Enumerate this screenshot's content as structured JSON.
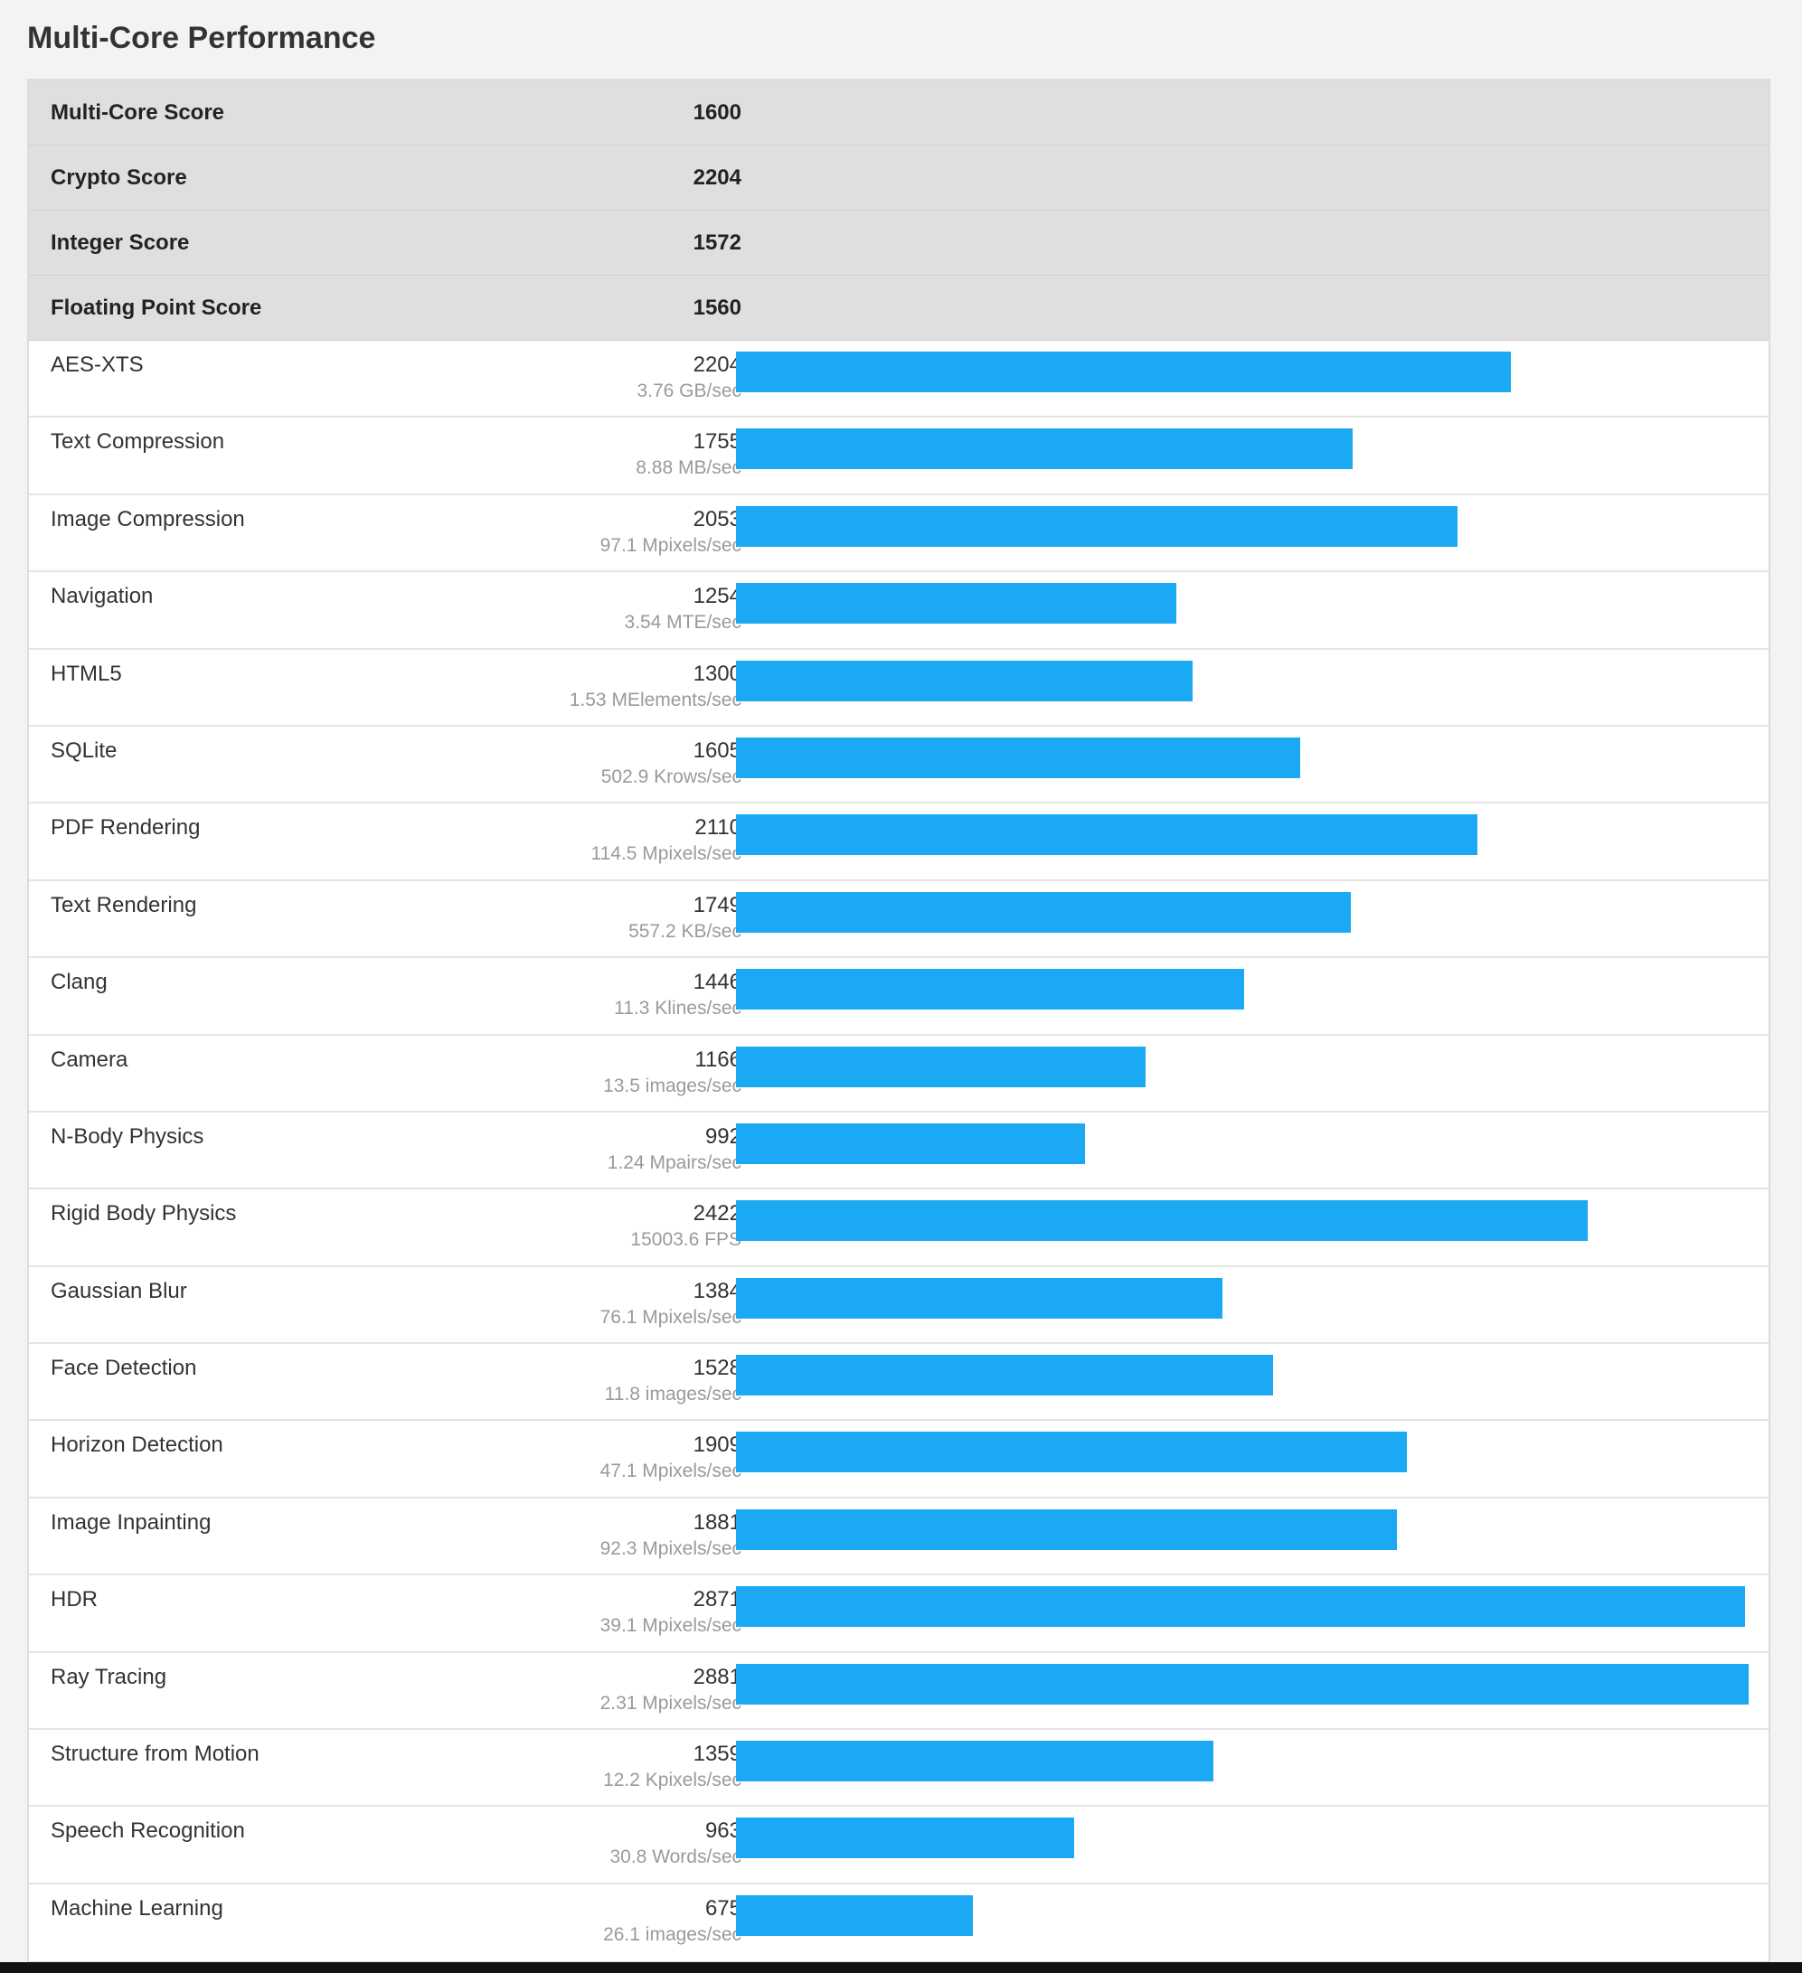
{
  "page": {
    "title": "Multi-Core Performance"
  },
  "colors": {
    "bar": "#1aa9f2",
    "summary_background": "#dfdfdf",
    "page_background": "#f3f3f3"
  },
  "summary": [
    {
      "label": "Multi-Core Score",
      "score": "1600"
    },
    {
      "label": "Crypto Score",
      "score": "2204"
    },
    {
      "label": "Integer Score",
      "score": "1572"
    },
    {
      "label": "Floating Point Score",
      "score": "1560"
    }
  ],
  "chart_data": {
    "type": "bar",
    "orientation": "horizontal",
    "title": "Multi-Core Performance",
    "xlim": [
      0,
      2881
    ],
    "categories": [
      "AES-XTS",
      "Text Compression",
      "Image Compression",
      "Navigation",
      "HTML5",
      "SQLite",
      "PDF Rendering",
      "Text Rendering",
      "Clang",
      "Camera",
      "N-Body Physics",
      "Rigid Body Physics",
      "Gaussian Blur",
      "Face Detection",
      "Horizon Detection",
      "Image Inpainting",
      "HDR",
      "Ray Tracing",
      "Structure from Motion",
      "Speech Recognition",
      "Machine Learning"
    ],
    "values": [
      2204,
      1755,
      2053,
      1254,
      1300,
      1605,
      2110,
      1749,
      1446,
      1166,
      992,
      2422,
      1384,
      1528,
      1909,
      1881,
      2871,
      2881,
      1359,
      963,
      675
    ],
    "rates": [
      "3.76 GB/sec",
      "8.88 MB/sec",
      "97.1 Mpixels/sec",
      "3.54 MTE/sec",
      "1.53 MElements/sec",
      "502.9 Krows/sec",
      "114.5 Mpixels/sec",
      "557.2 KB/sec",
      "11.3 Klines/sec",
      "13.5 images/sec",
      "1.24 Mpairs/sec",
      "15003.6 FPS",
      "76.1 Mpixels/sec",
      "11.8 images/sec",
      "47.1 Mpixels/sec",
      "92.3 Mpixels/sec",
      "39.1 Mpixels/sec",
      "2.31 Mpixels/sec",
      "12.2 Kpixels/sec",
      "30.8 Words/sec",
      "26.1 images/sec"
    ],
    "grid": false,
    "legend": "none"
  }
}
